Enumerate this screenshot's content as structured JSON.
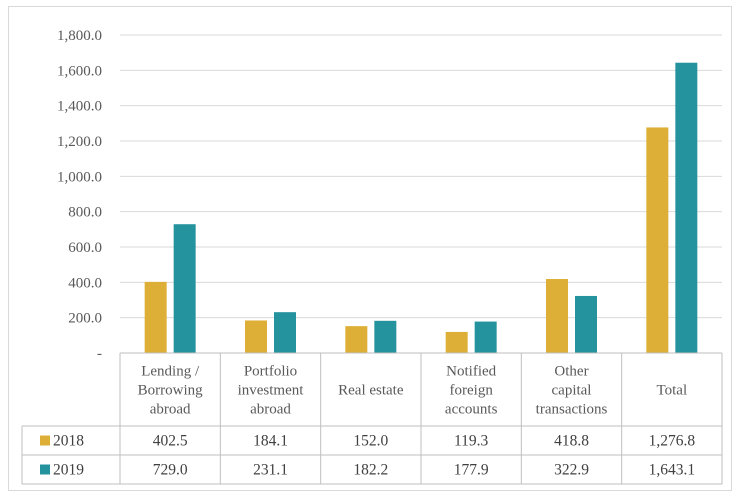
{
  "chart_data": {
    "type": "bar",
    "title": "",
    "xlabel": "",
    "ylabel": "",
    "ylim": [
      0,
      1800
    ],
    "yticks": [
      0,
      200,
      400,
      600,
      800,
      1000,
      1200,
      1400,
      1600,
      1800
    ],
    "ytick_labels": [
      "-",
      "200.0",
      "400.0",
      "600.0",
      "800.0",
      "1,000.0",
      "1,200.0",
      "1,400.0",
      "1,600.0",
      "1,800.0"
    ],
    "grid": true,
    "legend_position": "data-table-left",
    "categories": [
      [
        "Lending /",
        "Borrowing",
        "abroad"
      ],
      [
        "Portfolio",
        "investment",
        "abroad"
      ],
      [
        "Real estate"
      ],
      [
        "Notified",
        "foreign",
        "accounts"
      ],
      [
        "Other",
        "capital",
        "transactions"
      ],
      [
        "Total"
      ]
    ],
    "series": [
      {
        "name": "2018",
        "color": "#ddaf36",
        "values": [
          402.5,
          184.1,
          152.0,
          119.3,
          418.8,
          1276.8
        ],
        "value_labels": [
          "402.5",
          "184.1",
          "152.0",
          "119.3",
          "418.8",
          "1,276.8"
        ]
      },
      {
        "name": "2019",
        "color": "#25939e",
        "values": [
          729.0,
          231.1,
          182.2,
          177.9,
          322.9,
          1643.1
        ],
        "value_labels": [
          "729.0",
          "231.1",
          "182.2",
          "177.9",
          "322.9",
          "1,643.1"
        ]
      }
    ]
  }
}
